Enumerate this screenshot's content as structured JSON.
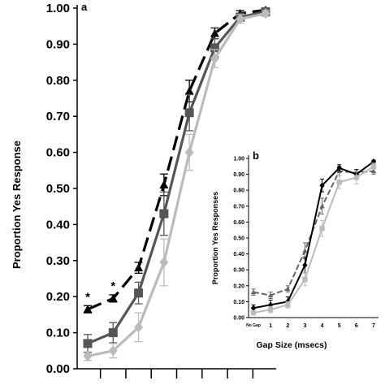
{
  "chart_data": [
    {
      "panel": "a",
      "type": "line",
      "title": "",
      "xlabel": "",
      "ylabel": "Proportion Yes Response",
      "ylim": [
        0,
        1
      ],
      "y_ticks": [
        "0.00",
        "0.10",
        "0.20",
        "0.30",
        "0.40",
        "0.50",
        "0.60",
        "0.70",
        "0.80",
        "0.90",
        "1.00"
      ],
      "x": [
        0,
        1,
        2,
        3,
        4,
        5,
        6,
        7
      ],
      "grid": false,
      "significance_marks": [
        {
          "label": "*",
          "x": 0
        },
        {
          "label": "*",
          "x": 1
        }
      ],
      "series": [
        {
          "values": [
            0.165,
            0.195,
            0.28,
            0.51,
            0.77,
            0.93,
            0.985,
            0.995
          ],
          "color": "#000000",
          "marker": "triangle",
          "dash": true,
          "error": [
            0.01,
            0.01,
            0.015,
            0.03,
            0.03,
            0.015,
            0.008,
            0.004
          ]
        },
        {
          "values": [
            0.07,
            0.1,
            0.21,
            0.43,
            0.71,
            0.89,
            0.975,
            0.99
          ],
          "color": "#555555",
          "marker": "square",
          "dash": false,
          "error": [
            0.025,
            0.028,
            0.03,
            0.06,
            0.05,
            0.025,
            0.01,
            0.006
          ]
        },
        {
          "values": [
            0.035,
            0.05,
            0.115,
            0.295,
            0.6,
            0.86,
            0.97,
            0.985
          ],
          "color": "#bbbbbb",
          "marker": "diamond",
          "dash": false,
          "error": [
            0.012,
            0.02,
            0.04,
            0.065,
            0.05,
            0.025,
            0.012,
            0.008
          ]
        }
      ]
    },
    {
      "panel": "b",
      "type": "line",
      "title": "",
      "xlabel": "Gap Size (msecs)",
      "ylabel": "Proportion Yes Responses",
      "ylim": [
        0,
        1
      ],
      "y_ticks": [
        "0.00",
        "0.10",
        "0.20",
        "0.30",
        "0.40",
        "0.50",
        "0.60",
        "0.70",
        "0.80",
        "0.90",
        "1.00"
      ],
      "x_ticks": [
        "No Gap",
        "1",
        "2",
        "3",
        "4",
        "5",
        "6",
        "7"
      ],
      "grid": false,
      "series": [
        {
          "values": [
            0.16,
            0.14,
            0.18,
            0.42,
            0.7,
            0.92,
            0.91,
            0.92
          ],
          "color": "#666666",
          "marker": "triangle",
          "dash": true,
          "error": [
            0.02,
            0.02,
            0.02,
            0.05,
            0.05,
            0.03,
            0.02,
            0.02
          ]
        },
        {
          "values": [
            0.06,
            0.08,
            0.1,
            0.33,
            0.83,
            0.94,
            0.9,
            0.98
          ],
          "color": "#000000",
          "marker": "diamond",
          "dash": false,
          "error": [
            0.02,
            0.03,
            0.03,
            0.05,
            0.04,
            0.02,
            0.03,
            0.01
          ]
        },
        {
          "values": [
            0.03,
            0.05,
            0.08,
            0.24,
            0.56,
            0.85,
            0.88,
            0.95
          ],
          "color": "#bbbbbb",
          "marker": "square",
          "dash": false,
          "error": [
            0.01,
            0.02,
            0.02,
            0.04,
            0.05,
            0.04,
            0.04,
            0.02
          ]
        }
      ]
    }
  ]
}
